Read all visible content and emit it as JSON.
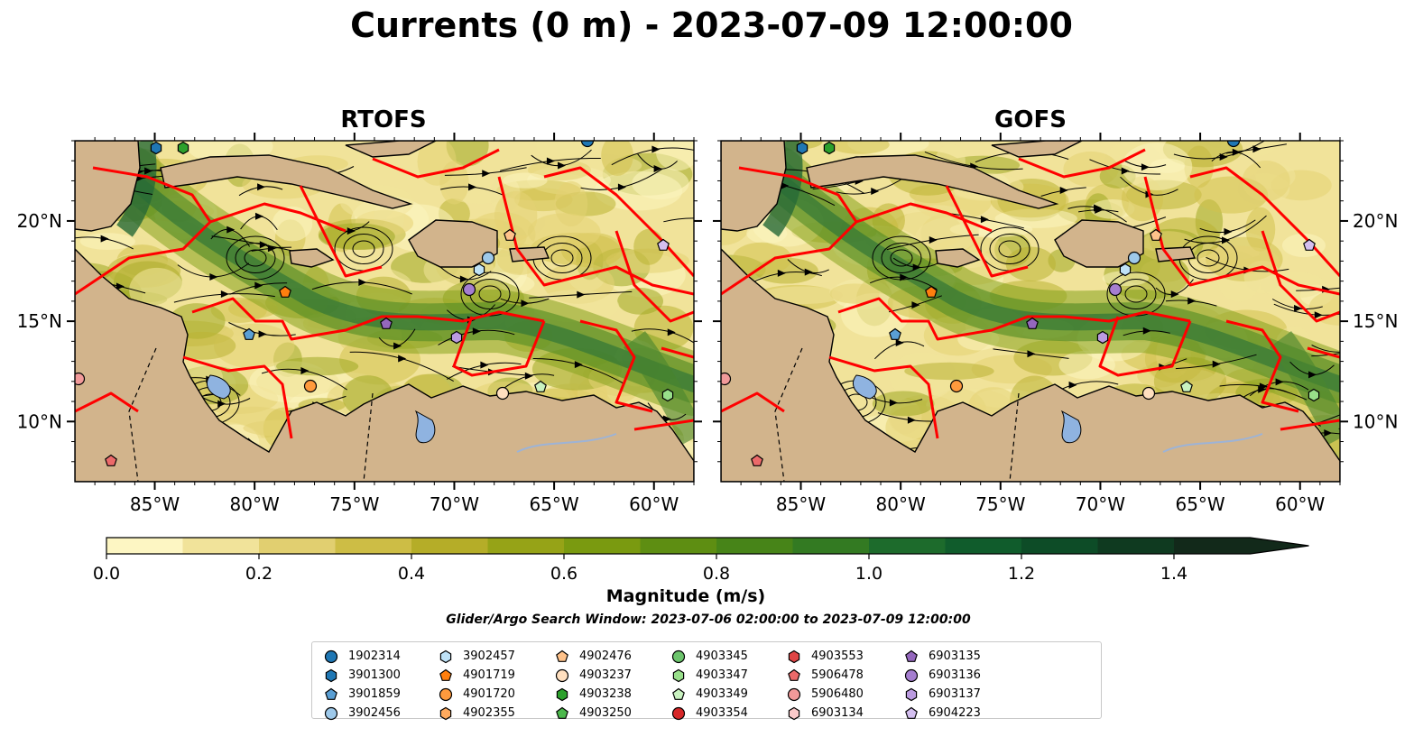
{
  "title": "Currents (0 m) - 2023-07-09 12:00:00",
  "panels": [
    {
      "title": "RTOFS",
      "x_ticks": [
        "85°W",
        "80°W",
        "75°W",
        "70°W",
        "65°W",
        "60°W"
      ],
      "y_ticks": [
        "20°N",
        "15°N",
        "10°N"
      ]
    },
    {
      "title": "GOFS",
      "x_ticks": [
        "85°W",
        "80°W",
        "75°W",
        "70°W",
        "65°W",
        "60°W"
      ],
      "y_ticks": [
        "20°N",
        "15°N",
        "10°N"
      ]
    }
  ],
  "map_extent": {
    "lon": [
      -89,
      -58
    ],
    "lat": [
      7,
      24
    ]
  },
  "colorbar": {
    "label": "Magnitude (m/s)",
    "ticks": [
      "0.0",
      "0.2",
      "0.4",
      "0.6",
      "0.8",
      "1.0",
      "1.2",
      "1.4"
    ],
    "range": [
      0,
      1.5
    ],
    "extend": "max",
    "colors": [
      "#fdf6c3",
      "#f1e39a",
      "#e1cf70",
      "#cdbd45",
      "#b5ad28",
      "#96a317",
      "#7a9a10",
      "#5e8e12",
      "#478418",
      "#337a22",
      "#1d6b2c",
      "#105c2c",
      "#0d4c27",
      "#0f3a20",
      "#12291a"
    ]
  },
  "search_window": "Glider/Argo Search Window: 2023-07-06 02:00:00 to 2023-07-09 12:00:00",
  "floats": [
    {
      "id": "1902314",
      "marker": "circle",
      "color": "#1f77b4"
    },
    {
      "id": "3901300",
      "marker": "hexagon",
      "color": "#1f77b4"
    },
    {
      "id": "3901859",
      "marker": "pentagon",
      "color": "#5a9fd4"
    },
    {
      "id": "3902456",
      "marker": "circle",
      "color": "#9ec9ea"
    },
    {
      "id": "3902457",
      "marker": "hexagon",
      "color": "#bfe2f7"
    },
    {
      "id": "4901719",
      "marker": "pentagon",
      "color": "#ff7f0e"
    },
    {
      "id": "4901720",
      "marker": "circle",
      "color": "#ff9a3d"
    },
    {
      "id": "4902355",
      "marker": "hexagon",
      "color": "#ffaa5e"
    },
    {
      "id": "4902476",
      "marker": "pentagon",
      "color": "#ffc28a"
    },
    {
      "id": "4903237",
      "marker": "circle",
      "color": "#ffdfbf"
    },
    {
      "id": "4903238",
      "marker": "hexagon",
      "color": "#2ca02c"
    },
    {
      "id": "4903250",
      "marker": "pentagon",
      "color": "#4cb84c"
    },
    {
      "id": "4903345",
      "marker": "circle",
      "color": "#6cc46c"
    },
    {
      "id": "4903347",
      "marker": "hexagon",
      "color": "#98df8a"
    },
    {
      "id": "4903349",
      "marker": "pentagon",
      "color": "#c9f2c0"
    },
    {
      "id": "4903354",
      "marker": "circle",
      "color": "#d62728"
    },
    {
      "id": "4903553",
      "marker": "hexagon",
      "color": "#e04545"
    },
    {
      "id": "5906478",
      "marker": "pentagon",
      "color": "#ec6a6a"
    },
    {
      "id": "5906480",
      "marker": "circle",
      "color": "#f29a9a"
    },
    {
      "id": "6903134",
      "marker": "hexagon",
      "color": "#fbcaca"
    },
    {
      "id": "6903135",
      "marker": "pentagon",
      "color": "#9467bd"
    },
    {
      "id": "6903136",
      "marker": "circle",
      "color": "#a57ed0"
    },
    {
      "id": "6903137",
      "marker": "hexagon",
      "color": "#bb9be0"
    },
    {
      "id": "6904223",
      "marker": "pentagon",
      "color": "#d4bff0"
    }
  ],
  "map_colors": {
    "land": "#d2b48c",
    "lake": "#8fb3e0",
    "river": "#9db3d6",
    "eez": "#ff0000",
    "streamline": "#000000"
  }
}
